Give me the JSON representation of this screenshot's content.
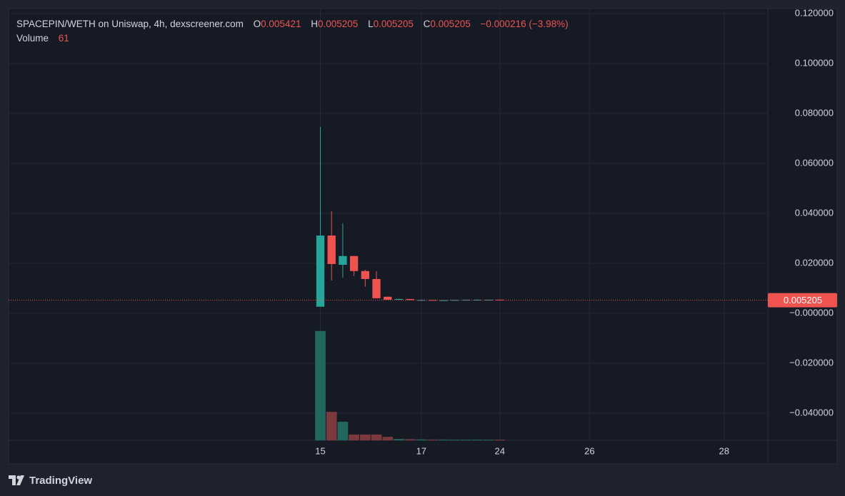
{
  "brand": "TradingView",
  "chart_data": {
    "type": "candlestick",
    "title": "SPACEPIN/WETH on Uniswap, 4h, dexscreener.com",
    "ohlc_legend": {
      "labels": [
        "O",
        "H",
        "L",
        "C"
      ],
      "values": [
        0.005421,
        0.005205,
        0.005205,
        0.005205
      ],
      "change": "−0.000216 (−3.98%)"
    },
    "volume_legend": {
      "label": "Volume",
      "value": 61
    },
    "up_color": "#26a69a",
    "down_color": "#ef5350",
    "volume_up_color": "#22675f",
    "volume_down_color": "#7a3a3b",
    "open": [
      0.0026,
      0.0311,
      0.0194,
      0.0229,
      0.0169,
      0.0137,
      0.0066,
      0.0054,
      0.0057,
      0.0053,
      0.0053,
      0.0052,
      0.0052,
      0.0053,
      0.0054,
      0.0054,
      0.005421
    ],
    "high": [
      0.0746,
      0.0409,
      0.036,
      0.0229,
      0.0174,
      0.0169,
      0.0066,
      0.0058,
      0.0057,
      0.0054,
      0.0053,
      0.0053,
      0.0054,
      0.0054,
      0.0055,
      0.0055,
      0.005421
    ],
    "low": [
      0.0026,
      0.0131,
      0.0143,
      0.0149,
      0.0106,
      0.006,
      0.0054,
      0.0053,
      0.0052,
      0.0052,
      0.0051,
      0.0051,
      0.0052,
      0.0052,
      0.0053,
      0.0054,
      0.005205
    ],
    "close": [
      0.0311,
      0.0197,
      0.0229,
      0.0169,
      0.0137,
      0.006,
      0.0054,
      0.0057,
      0.0053,
      0.0053,
      0.0052,
      0.0052,
      0.0053,
      0.0054,
      0.0054,
      0.0054,
      0.005205
    ],
    "volume": [
      9400,
      2450,
      1600,
      500,
      500,
      500,
      300,
      120,
      100,
      80,
      70,
      70,
      60,
      60,
      65,
      60,
      61
    ],
    "volume_lim": [
      0,
      10000
    ],
    "last_price": 0.005205,
    "xlim": [
      -27.8,
      39.9
    ],
    "xticks": [
      {
        "value": 0,
        "label": "15"
      },
      {
        "value": 9,
        "label": "17"
      },
      {
        "value": 16,
        "label": "24"
      },
      {
        "value": 24,
        "label": "26"
      },
      {
        "value": 36,
        "label": "28"
      }
    ],
    "ylim": [
      -0.0509,
      0.122
    ],
    "yticks": [
      {
        "value": -0.04,
        "label": "−0.040000"
      },
      {
        "value": -0.02,
        "label": "−0.020000"
      },
      {
        "value": 0,
        "label": "−0.000000"
      },
      {
        "value": 0.02,
        "label": "0.020000"
      },
      {
        "value": 0.04,
        "label": "0.040000"
      },
      {
        "value": 0.06,
        "label": "0.060000"
      },
      {
        "value": 0.08,
        "label": "0.080000"
      },
      {
        "value": 0.1,
        "label": "0.100000"
      },
      {
        "value": 0.12,
        "label": "0.120000"
      }
    ],
    "grid": true
  }
}
